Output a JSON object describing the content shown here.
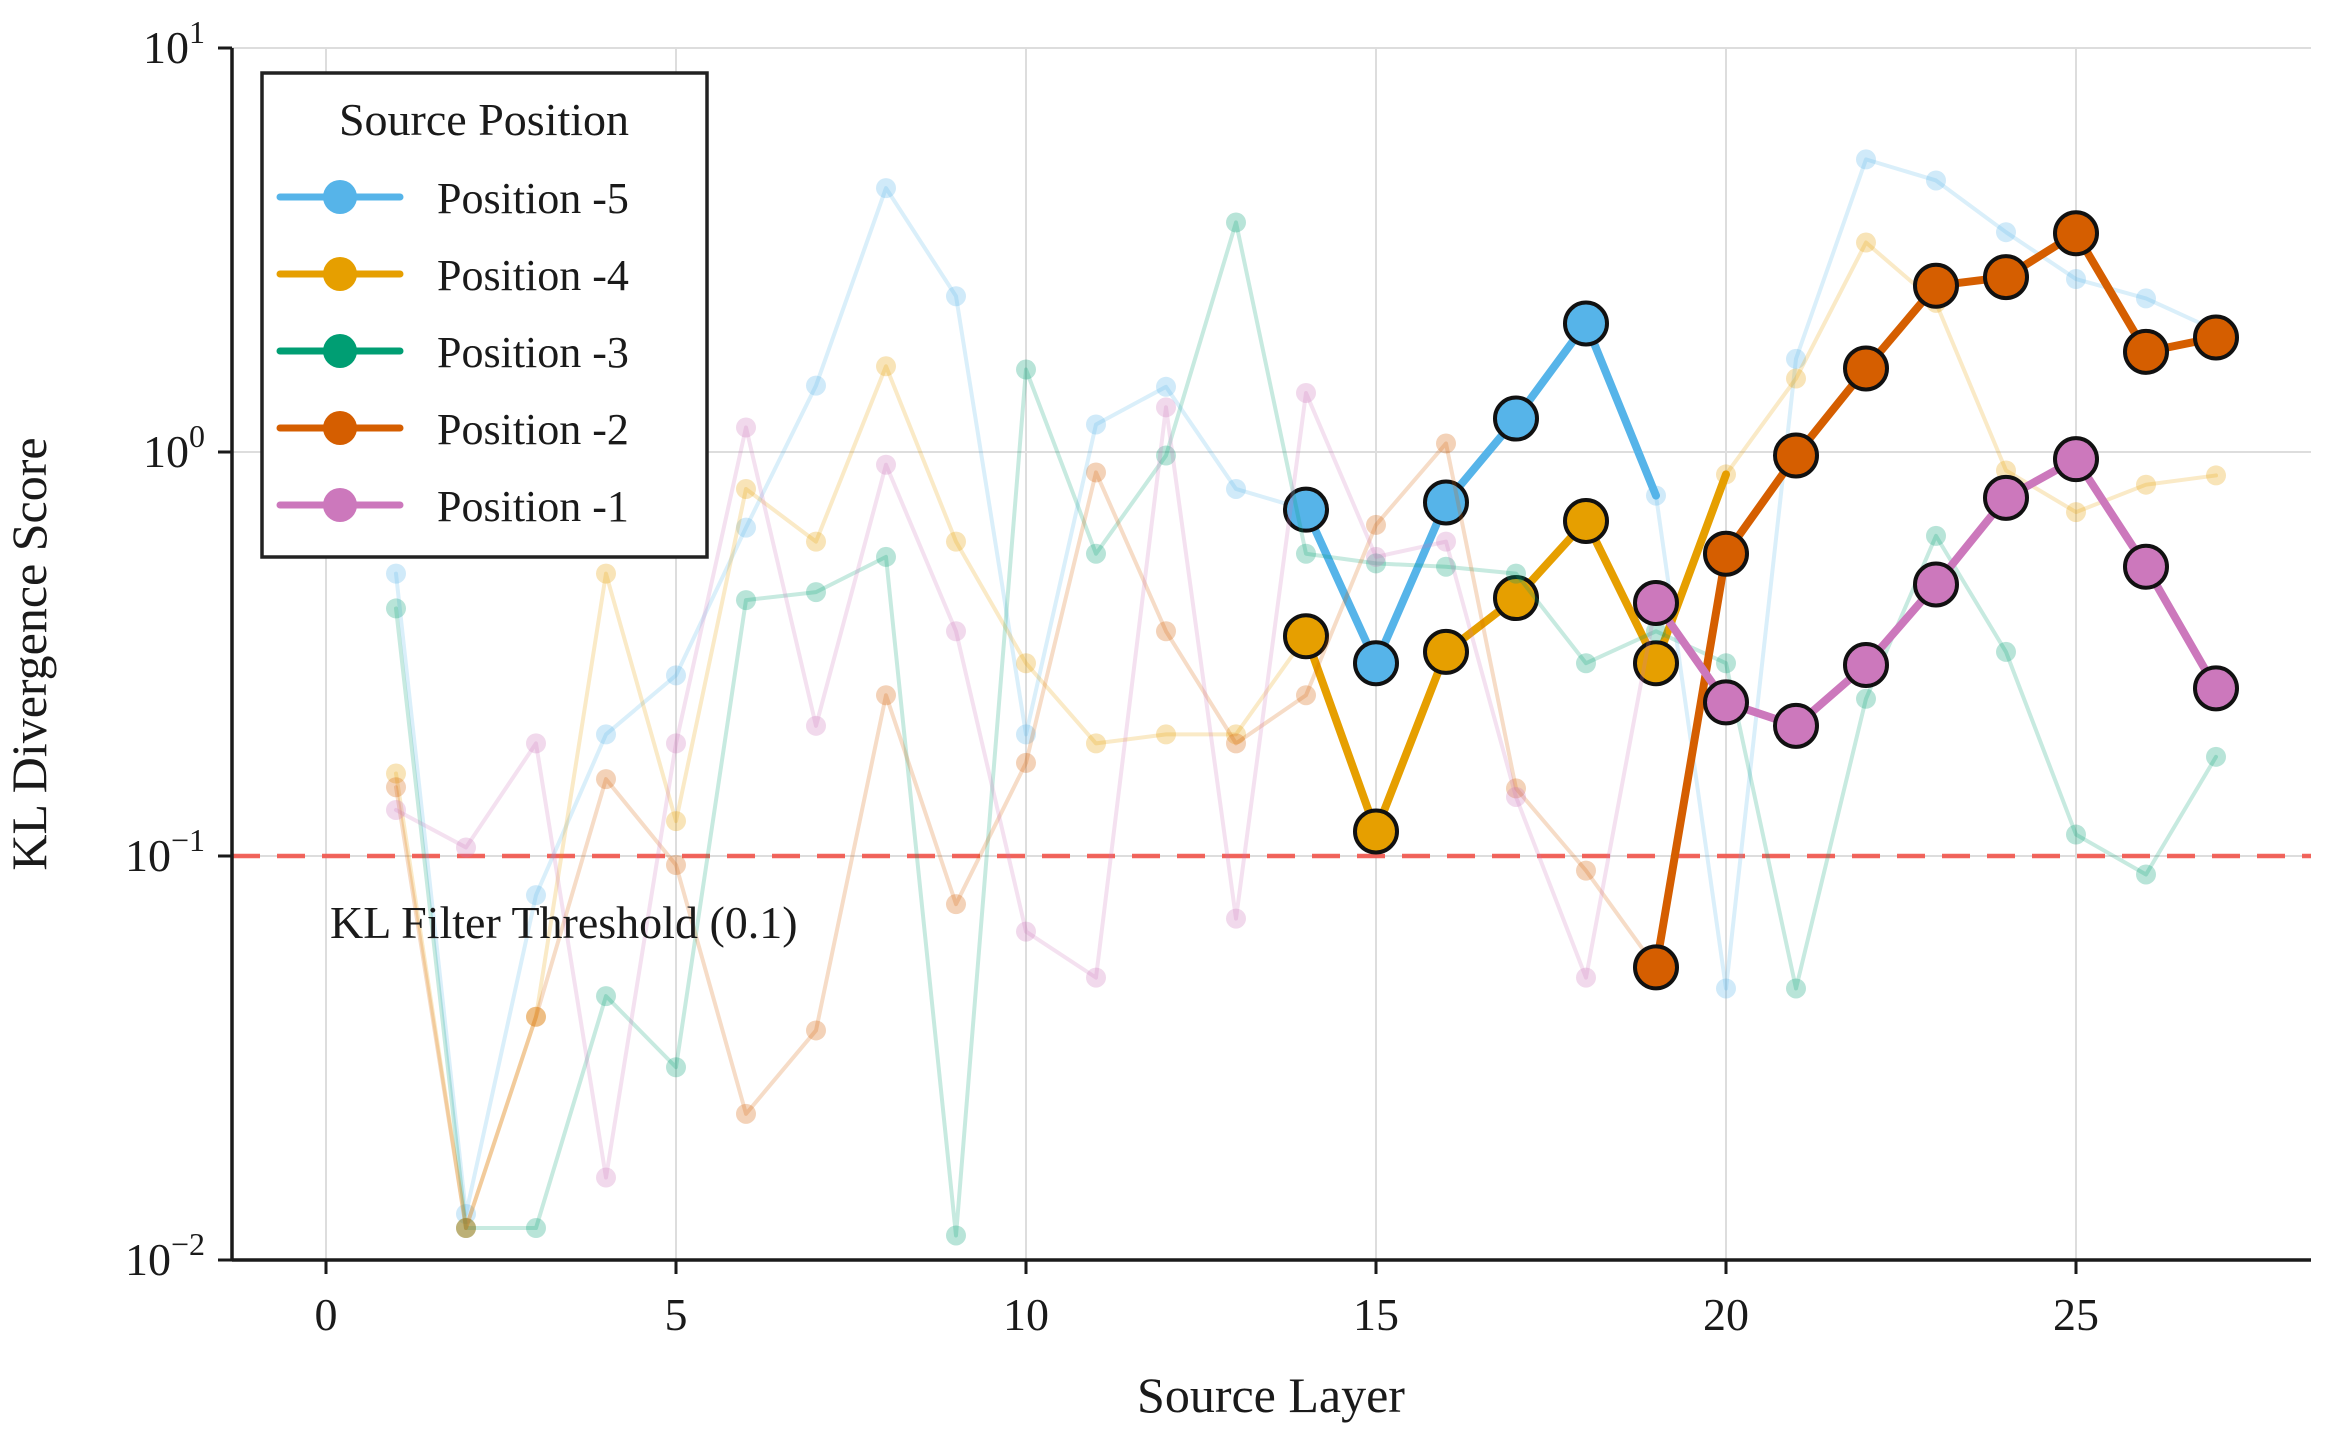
{
  "chart_data": {
    "type": "line",
    "title": "",
    "xlabel": "Source Layer",
    "ylabel": "KL Divergence Score",
    "x_ticks": [
      0,
      5,
      10,
      15,
      20,
      25
    ],
    "y_ticks": [
      {
        "base": "10",
        "exp": "1",
        "value": 10
      },
      {
        "base": "10",
        "exp": "0",
        "value": 1
      },
      {
        "base": "10",
        "exp": "−1",
        "value": 0.1
      },
      {
        "base": "10",
        "exp": "−2",
        "value": 0.01
      }
    ],
    "x_range": [
      -1.34,
      28.36
    ],
    "y_log_range": [
      -2,
      1
    ],
    "grid": true,
    "legend_position": "upper-left",
    "threshold": {
      "value": 0.1,
      "label": "KL Filter Threshold (0.1)",
      "line_color": "#f1544b",
      "text_color": "#ff0000"
    },
    "legend": {
      "title": "Source Position"
    },
    "colors": {
      "grid": "#dddddd",
      "spine": "#1a1a1a",
      "text": "#1a1a1a"
    },
    "series": [
      {
        "name": "Position -5",
        "color": "#56B4E9",
        "segments": [
          {
            "style": "faint",
            "x": [
              1,
              2,
              3,
              4,
              5,
              6,
              7,
              8,
              9,
              10,
              11,
              12,
              13,
              14
            ],
            "y": [
              0.5,
              0.013,
              0.08,
              0.2,
              0.28,
              0.65,
              1.46,
              4.5,
              2.43,
              0.2,
              1.17,
              1.45,
              0.81,
              0.72
            ]
          },
          {
            "style": "bold",
            "x": [
              14,
              15,
              16,
              17,
              18,
              19
            ],
            "y": [
              0.72,
              0.3,
              0.75,
              1.21,
              2.08,
              0.78
            ],
            "marker_x": [
              14,
              15,
              16,
              17,
              18
            ]
          },
          {
            "style": "faint",
            "x": [
              19,
              20,
              21,
              22,
              23,
              24,
              25,
              26,
              27
            ],
            "y": [
              0.78,
              0.047,
              1.7,
              5.3,
              4.7,
              3.5,
              2.68,
              2.4,
              2.0
            ]
          }
        ]
      },
      {
        "name": "Position -4",
        "color": "#E69F00",
        "segments": [
          {
            "style": "faint",
            "x": [
              1,
              2,
              3,
              4,
              5,
              6,
              7,
              8,
              9,
              10,
              11,
              12,
              13,
              14
            ],
            "y": [
              0.16,
              0.012,
              0.04,
              0.5,
              0.122,
              0.81,
              0.6,
              1.63,
              0.6,
              0.3,
              0.19,
              0.2,
              0.2,
              0.35
            ]
          },
          {
            "style": "bold",
            "x": [
              14,
              15,
              16,
              17,
              18,
              19,
              20
            ],
            "y": [
              0.35,
              0.115,
              0.32,
              0.435,
              0.675,
              0.3,
              0.88
            ],
            "marker_x": [
              14,
              15,
              16,
              17,
              18,
              19
            ]
          },
          {
            "style": "faint",
            "x": [
              20,
              21,
              22,
              23,
              24,
              25,
              26,
              27
            ],
            "y": [
              0.88,
              1.52,
              3.3,
              2.34,
              0.9,
              0.71,
              0.83,
              0.875
            ]
          }
        ]
      },
      {
        "name": "Position -3",
        "color": "#009E73",
        "segments": [
          {
            "style": "faint",
            "x": [
              1,
              2,
              3,
              4,
              5,
              6,
              7,
              8,
              9,
              10,
              11,
              12,
              13,
              14,
              15,
              16,
              17,
              18,
              19,
              20,
              21,
              22,
              23,
              24,
              25,
              26,
              27
            ],
            "y": [
              0.41,
              0.012,
              0.012,
              0.045,
              0.03,
              0.43,
              0.45,
              0.55,
              0.0115,
              1.6,
              0.56,
              0.98,
              3.7,
              0.56,
              0.53,
              0.52,
              0.5,
              0.3,
              0.36,
              0.3,
              0.047,
              0.245,
              0.62,
              0.32,
              0.113,
              0.09,
              0.176
            ]
          }
        ]
      },
      {
        "name": "Position -2",
        "color": "#D55E00",
        "segments": [
          {
            "style": "faint",
            "x": [
              1,
              2,
              3,
              4,
              5,
              6,
              7,
              8,
              9,
              10,
              11,
              12,
              13,
              14,
              15,
              16,
              17,
              18,
              19
            ],
            "y": [
              0.148,
              0.012,
              0.04,
              0.155,
              0.095,
              0.023,
              0.037,
              0.25,
              0.076,
              0.17,
              0.89,
              0.36,
              0.19,
              0.25,
              0.66,
              1.05,
              0.147,
              0.092,
              0.053
            ]
          },
          {
            "style": "bold",
            "x": [
              19,
              20,
              21,
              22,
              23,
              24,
              25,
              26,
              27
            ],
            "y": [
              0.053,
              0.56,
              0.98,
              1.61,
              2.58,
              2.71,
              3.48,
              1.77,
              1.92
            ],
            "marker_x": [
              19,
              20,
              21,
              22,
              23,
              24,
              25,
              26,
              27
            ]
          }
        ]
      },
      {
        "name": "Position -1",
        "color": "#CC78BC",
        "segments": [
          {
            "style": "faint",
            "x": [
              1,
              2,
              3,
              4,
              5,
              6,
              7,
              8,
              9,
              10,
              11,
              12,
              13,
              14,
              15,
              16,
              17,
              18,
              19
            ],
            "y": [
              0.13,
              0.105,
              0.19,
              0.016,
              0.19,
              1.15,
              0.21,
              0.93,
              0.36,
              0.065,
              0.05,
              1.29,
              0.07,
              1.4,
              0.55,
              0.6,
              0.14,
              0.05,
              0.423
            ]
          },
          {
            "style": "bold",
            "x": [
              19,
              20,
              21,
              22,
              23,
              24,
              25,
              26,
              27
            ],
            "y": [
              0.423,
              0.24,
              0.21,
              0.297,
              0.47,
              0.77,
              0.96,
              0.52,
              0.26
            ],
            "marker_x": [
              19,
              20,
              21,
              22,
              23,
              24,
              25,
              26,
              27
            ]
          }
        ]
      }
    ]
  }
}
